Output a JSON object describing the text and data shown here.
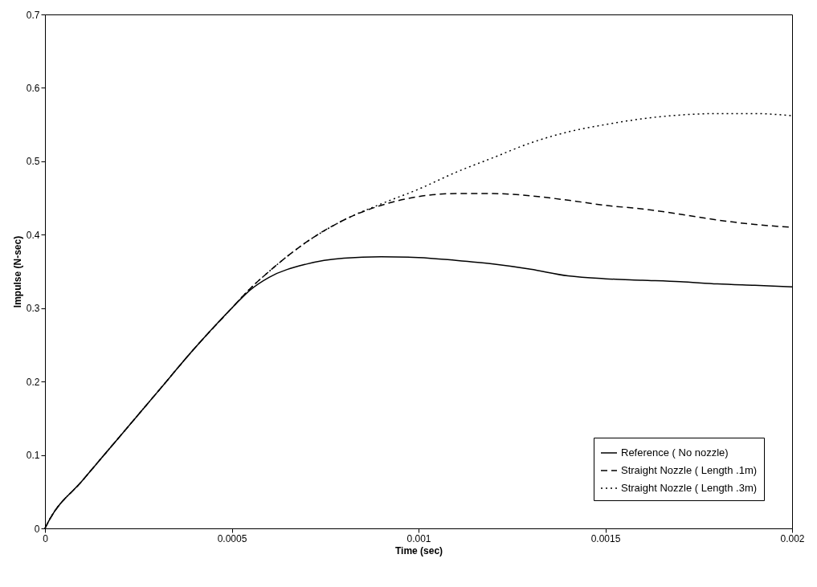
{
  "chart_data": {
    "type": "line",
    "xlabel": "Time (sec)",
    "ylabel": "Impulse (N-sec)",
    "xlim": [
      0,
      0.002
    ],
    "ylim": [
      0,
      0.7
    ],
    "xticks": [
      0,
      0.0005,
      0.001,
      0.0015,
      0.002
    ],
    "yticks": [
      0,
      0.1,
      0.2,
      0.3,
      0.4,
      0.5,
      0.6,
      0.7
    ],
    "grid": false,
    "legend": "bottom right",
    "marker": "none",
    "x": [
      0,
      1e-05,
      0.0001,
      0.0002,
      0.0003,
      0.0004,
      0.0005,
      0.00055,
      0.0006,
      0.0007,
      0.0008,
      0.0009,
      0.001,
      0.0011,
      0.0012,
      0.0013,
      0.0014,
      0.0015,
      0.0016,
      0.0017,
      0.0018,
      0.0019,
      0.002
    ],
    "series": [
      {
        "name": "Reference ( No nozzle)",
        "color": "#000000",
        "line_style": "solid",
        "values": [
          0,
          0.01,
          0.065,
          0.125,
          0.185,
          0.245,
          0.3,
          0.325,
          0.342,
          0.36,
          0.368,
          0.37,
          0.369,
          0.365,
          0.36,
          0.353,
          0.344,
          0.34,
          0.338,
          0.336,
          0.333,
          0.331,
          0.329
        ]
      },
      {
        "name": "Straight Nozzle ( Length .1m)",
        "color": "#000000",
        "line_style": "dashed",
        "values": [
          0,
          0.01,
          0.065,
          0.125,
          0.185,
          0.245,
          0.3,
          0.327,
          0.35,
          0.39,
          0.42,
          0.44,
          0.452,
          0.456,
          0.456,
          0.453,
          0.447,
          0.44,
          0.435,
          0.428,
          0.42,
          0.414,
          0.41
        ]
      },
      {
        "name": "Straight Nozzle ( Length .3m)",
        "color": "#000000",
        "line_style": "dotted",
        "values": [
          0,
          0.01,
          0.065,
          0.125,
          0.185,
          0.245,
          0.3,
          0.327,
          0.35,
          0.39,
          0.42,
          0.442,
          0.462,
          0.485,
          0.505,
          0.525,
          0.54,
          0.55,
          0.558,
          0.563,
          0.565,
          0.565,
          0.562
        ]
      }
    ]
  }
}
